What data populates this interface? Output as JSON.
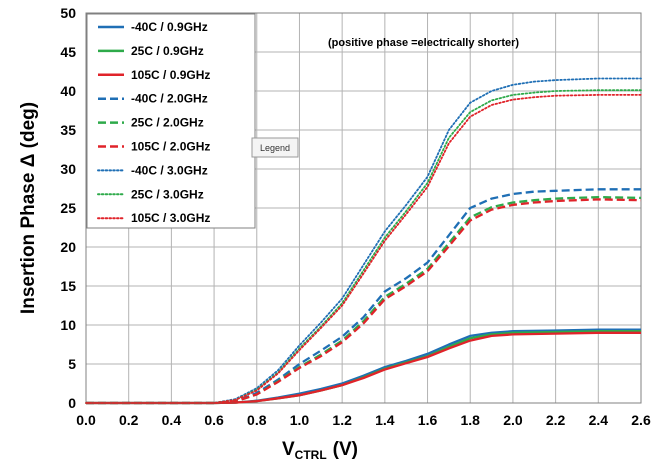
{
  "chart_data": {
    "type": "line",
    "xlabel": "V",
    "xlabel_sub": "CTRL",
    "xlabel_unit": "(V)",
    "ylabel": "Insertion Phase Δ (deg)",
    "xlim": [
      0,
      2.6
    ],
    "ylim": [
      0,
      50
    ],
    "xticks": [
      "0.0",
      "0.2",
      "0.4",
      "0.6",
      "0.8",
      "1.0",
      "1.2",
      "1.4",
      "1.6",
      "1.8",
      "2.0",
      "2.2",
      "2.4",
      "2.6"
    ],
    "yticks": [
      "0",
      "5",
      "10",
      "15",
      "20",
      "25",
      "30",
      "35",
      "40",
      "45",
      "50"
    ],
    "grid": true,
    "legend_position": "top-left",
    "annotation": "(positive phase =electrically shorter)",
    "tooltip": "Legend",
    "series": [
      {
        "name": "-40C /  0.9GHz",
        "color": "#1f6fb5",
        "dash": "solid",
        "x": [
          0,
          0.6,
          0.7,
          0.8,
          0.9,
          1.0,
          1.1,
          1.2,
          1.3,
          1.4,
          1.5,
          1.6,
          1.7,
          1.8,
          1.9,
          2.0,
          2.2,
          2.4,
          2.6
        ],
        "y": [
          0,
          0,
          0.05,
          0.3,
          0.7,
          1.2,
          1.8,
          2.5,
          3.5,
          4.6,
          5.4,
          6.3,
          7.5,
          8.6,
          9.0,
          9.2,
          9.3,
          9.4,
          9.4
        ]
      },
      {
        "name": "25C /  0.9GHz",
        "color": "#2eaa4a",
        "dash": "solid",
        "x": [
          0,
          0.6,
          0.7,
          0.8,
          0.9,
          1.0,
          1.1,
          1.2,
          1.3,
          1.4,
          1.5,
          1.6,
          1.7,
          1.8,
          1.9,
          2.0,
          2.2,
          2.4,
          2.6
        ],
        "y": [
          0,
          0,
          0.05,
          0.25,
          0.6,
          1.0,
          1.6,
          2.3,
          3.3,
          4.4,
          5.2,
          6.0,
          7.2,
          8.3,
          8.8,
          9.0,
          9.1,
          9.2,
          9.2
        ]
      },
      {
        "name": "105C /  0.9GHz",
        "color": "#e0232a",
        "dash": "solid",
        "x": [
          0,
          0.6,
          0.7,
          0.8,
          0.9,
          1.0,
          1.1,
          1.2,
          1.3,
          1.4,
          1.5,
          1.6,
          1.7,
          1.8,
          1.9,
          2.0,
          2.2,
          2.4,
          2.6
        ],
        "y": [
          0,
          0,
          0.05,
          0.25,
          0.6,
          1.0,
          1.6,
          2.3,
          3.2,
          4.3,
          5.1,
          5.9,
          7.0,
          8.0,
          8.6,
          8.8,
          8.9,
          9.0,
          9.0
        ]
      },
      {
        "name": "-40C /  2.0GHz",
        "color": "#1f6fb5",
        "dash": "dashed",
        "x": [
          0,
          0.6,
          0.7,
          0.8,
          0.9,
          1.0,
          1.1,
          1.2,
          1.3,
          1.4,
          1.5,
          1.6,
          1.7,
          1.8,
          1.9,
          2.0,
          2.1,
          2.2,
          2.4,
          2.6
        ],
        "y": [
          0,
          0,
          0.2,
          1.3,
          3.0,
          5.0,
          6.7,
          8.5,
          11.0,
          14.3,
          16.0,
          18.0,
          21.5,
          25.0,
          26.2,
          26.8,
          27.1,
          27.2,
          27.4,
          27.4
        ]
      },
      {
        "name": "25C /  2.0GHz",
        "color": "#2eaa4a",
        "dash": "dashed",
        "x": [
          0,
          0.6,
          0.7,
          0.8,
          0.9,
          1.0,
          1.1,
          1.2,
          1.3,
          1.4,
          1.5,
          1.6,
          1.7,
          1.8,
          1.9,
          2.0,
          2.1,
          2.2,
          2.4,
          2.6
        ],
        "y": [
          0,
          0,
          0.2,
          1.1,
          2.8,
          4.6,
          6.2,
          8.0,
          10.5,
          13.6,
          15.3,
          17.2,
          20.5,
          23.8,
          25.1,
          25.7,
          26.0,
          26.2,
          26.4,
          26.3
        ]
      },
      {
        "name": "105C /  2.0GHz",
        "color": "#e0232a",
        "dash": "dashed",
        "x": [
          0,
          0.6,
          0.7,
          0.8,
          0.9,
          1.0,
          1.1,
          1.2,
          1.3,
          1.4,
          1.5,
          1.6,
          1.7,
          1.8,
          1.9,
          2.0,
          2.1,
          2.2,
          2.4,
          2.6
        ],
        "y": [
          0,
          0,
          0.2,
          1.1,
          2.7,
          4.5,
          6.0,
          7.8,
          10.2,
          13.3,
          15.0,
          16.9,
          20.1,
          23.4,
          24.8,
          25.4,
          25.7,
          25.9,
          26.1,
          26.0
        ]
      },
      {
        "name": "-40C /  3.0GHz",
        "color": "#1f6fb5",
        "dash": "dotted",
        "x": [
          0,
          0.6,
          0.7,
          0.8,
          0.9,
          1.0,
          1.1,
          1.2,
          1.3,
          1.4,
          1.5,
          1.6,
          1.7,
          1.8,
          1.9,
          2.0,
          2.1,
          2.2,
          2.4,
          2.6
        ],
        "y": [
          0,
          0,
          0.5,
          1.9,
          4.2,
          7.4,
          10.3,
          13.4,
          17.7,
          22.0,
          25.4,
          29.0,
          35.0,
          38.5,
          40.0,
          40.8,
          41.2,
          41.4,
          41.6,
          41.6
        ]
      },
      {
        "name": "25C /  3.0GHz",
        "color": "#2eaa4a",
        "dash": "dotted",
        "x": [
          0,
          0.6,
          0.7,
          0.8,
          0.9,
          1.0,
          1.1,
          1.2,
          1.3,
          1.4,
          1.5,
          1.6,
          1.7,
          1.8,
          1.9,
          2.0,
          2.1,
          2.2,
          2.4,
          2.6
        ],
        "y": [
          0,
          0,
          0.4,
          1.7,
          3.9,
          7.0,
          9.8,
          12.8,
          17.0,
          21.2,
          24.6,
          28.2,
          34.0,
          37.3,
          38.8,
          39.5,
          39.8,
          40.0,
          40.1,
          40.1
        ]
      },
      {
        "name": "105C /  3.0GHz",
        "color": "#e0232a",
        "dash": "dotted",
        "x": [
          0,
          0.6,
          0.7,
          0.8,
          0.9,
          1.0,
          1.1,
          1.2,
          1.3,
          1.4,
          1.5,
          1.6,
          1.7,
          1.8,
          1.9,
          2.0,
          2.1,
          2.2,
          2.4,
          2.6
        ],
        "y": [
          0,
          0,
          0.4,
          1.6,
          3.8,
          6.8,
          9.6,
          12.5,
          16.6,
          20.8,
          24.2,
          27.7,
          33.3,
          36.7,
          38.2,
          38.9,
          39.2,
          39.4,
          39.5,
          39.5
        ]
      }
    ]
  }
}
